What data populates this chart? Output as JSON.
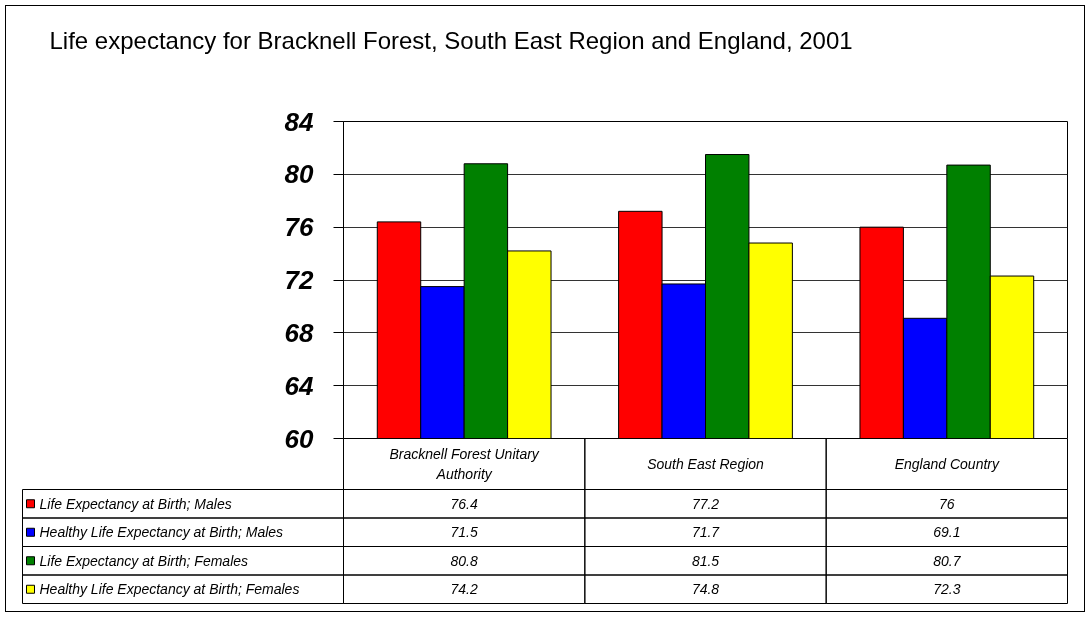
{
  "chart_data": {
    "type": "bar",
    "title": "Life expectancy for Bracknell Forest, South East Region and England, 2001",
    "categories": [
      "Bracknell Forest Unitary Authority",
      "South East Region",
      "England Country"
    ],
    "series": [
      {
        "name": "Life Expectancy at Birth; Males",
        "color": "#ff0000",
        "values": [
          76.4,
          77.2,
          76
        ]
      },
      {
        "name": "Healthy Life Expectancy at Birth; Males",
        "color": "#0000ff",
        "values": [
          71.5,
          71.7,
          69.1
        ]
      },
      {
        "name": "Life Expectancy at Birth; Females",
        "color": "#008000",
        "values": [
          80.8,
          81.5,
          80.7
        ]
      },
      {
        "name": "Healthy Life Expectancy at Birth; Females",
        "color": "#ffff00",
        "values": [
          74.2,
          74.8,
          72.3
        ]
      }
    ],
    "ylim": [
      60,
      84
    ],
    "yticks": [
      60,
      64,
      68,
      72,
      76,
      80,
      84
    ],
    "grid": "y",
    "legend": "bottom left",
    "data_labels": true
  }
}
